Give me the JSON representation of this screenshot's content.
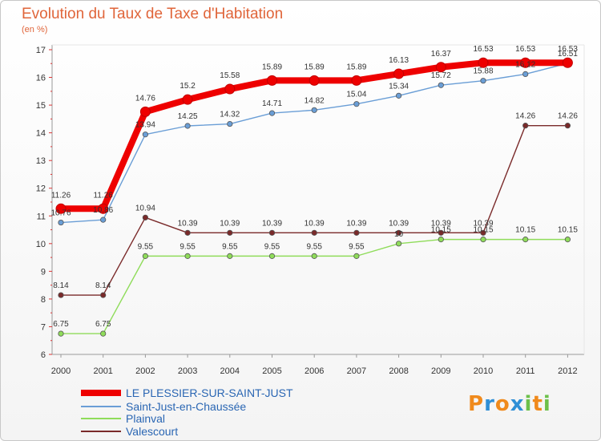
{
  "chart_data": {
    "type": "line",
    "title": "Evolution du Taux de Taxe d'Habitation",
    "unit_label": "(en %)",
    "x": [
      "2000",
      "2001",
      "2002",
      "2003",
      "2004",
      "2005",
      "2006",
      "2007",
      "2008",
      "2009",
      "2010",
      "2011",
      "2012"
    ],
    "ylim": [
      6,
      17
    ],
    "yticks": [
      6,
      7,
      8,
      9,
      10,
      11,
      12,
      13,
      14,
      15,
      16,
      17
    ],
    "grid": false,
    "legend_position": "bottom-left",
    "series": [
      {
        "name": "LE PLESSIER-SUR-SAINT-JUST",
        "color": "#ee0000",
        "values": [
          11.26,
          11.26,
          14.76,
          15.2,
          15.58,
          15.89,
          15.89,
          15.89,
          16.13,
          16.37,
          16.53,
          16.53,
          16.53
        ],
        "labels": [
          "11.26",
          "11.26",
          "14.76",
          "15.2",
          "15.58",
          "15.89",
          "15.89",
          "15.89",
          "16.13",
          "16.37",
          "16.53",
          "16.53",
          "16.53"
        ]
      },
      {
        "name": "Saint-Just-en-Chaussée",
        "color": "#6a9ed6",
        "values": [
          10.76,
          10.86,
          13.94,
          14.25,
          14.32,
          14.71,
          14.82,
          15.04,
          15.34,
          15.72,
          15.88,
          16.12,
          16.51
        ],
        "labels": [
          "10.76",
          "10.86",
          "13.94",
          "14.25",
          "14.32",
          "14.71",
          "14.82",
          "15.04",
          "15.34",
          "15.72",
          "15.88",
          "16.12",
          "16.51"
        ]
      },
      {
        "name": "Plainval",
        "color": "#8fdc5a",
        "values": [
          6.75,
          6.75,
          9.55,
          9.55,
          9.55,
          9.55,
          9.55,
          9.55,
          10.0,
          10.15,
          10.15,
          10.15,
          10.15
        ],
        "labels": [
          "6.75",
          "6.75",
          "9.55",
          "9.55",
          "9.55",
          "9.55",
          "9.55",
          "9.55",
          "10",
          "10.15",
          "10.15",
          "10.15",
          "10.15"
        ]
      },
      {
        "name": "Valescourt",
        "color": "#7a2a2a",
        "values": [
          8.14,
          8.14,
          10.94,
          10.39,
          10.39,
          10.39,
          10.39,
          10.39,
          10.39,
          10.39,
          10.39,
          14.26,
          14.26
        ],
        "labels": [
          "8.14",
          "8.14",
          "10.94",
          "10.39",
          "10.39",
          "10.39",
          "10.39",
          "10.39",
          "10.39",
          "10.39",
          "10.39",
          "14.26",
          "14.26"
        ]
      }
    ]
  },
  "logo": {
    "parts": [
      "P",
      "r",
      "o",
      "x",
      "i",
      "t",
      "i"
    ],
    "colors": [
      "#f08a1c",
      "#2f8fd6",
      "#f08a1c",
      "#2f8fd6",
      "#6cc04a",
      "#f08a1c",
      "#6cc04a"
    ]
  }
}
